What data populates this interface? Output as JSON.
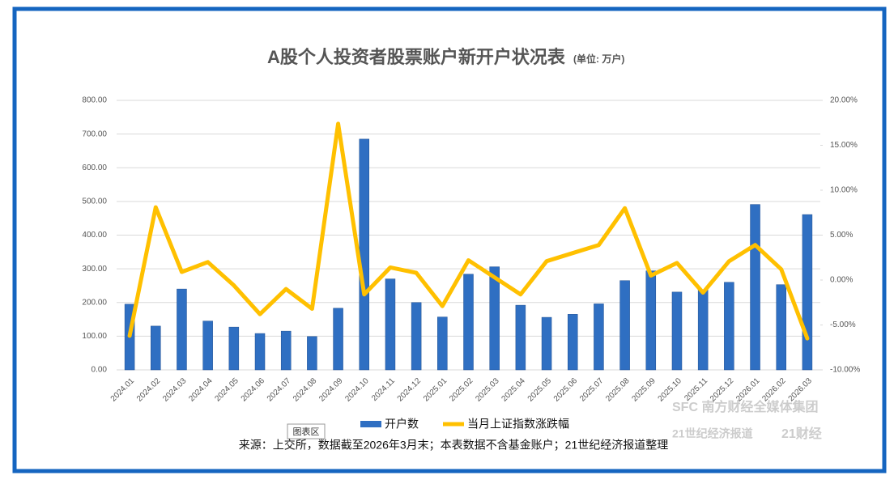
{
  "chart_data": {
    "type": "bar",
    "title": "A股个人投资者股票账户新开户状况表",
    "subtitle": "(单位: 万户)",
    "categories": [
      "2024.01",
      "2024.02",
      "2024.03",
      "2024.04",
      "2024.05",
      "2024.06",
      "2024.07",
      "2024.08",
      "2024.09",
      "2024.10",
      "2024.11",
      "2024.12",
      "2025.01",
      "2025.02",
      "2025.03",
      "2025.04",
      "2025.05",
      "2025.06",
      "2025.07",
      "2025.08",
      "2025.09",
      "2025.10",
      "2025.11",
      "2025.12",
      "2026.01",
      "2026.02",
      "2026.03"
    ],
    "series": [
      {
        "name": "开户数",
        "type": "bar",
        "color": "#2f6fc2",
        "values": [
          195,
          130,
          240,
          145,
          127,
          108,
          115,
          99,
          183,
          685,
          270,
          200,
          157,
          284,
          306,
          192,
          156,
          165,
          196,
          265,
          294,
          231,
          238,
          260,
          491,
          253,
          461
        ]
      },
      {
        "name": "当月上证指数涨跌幅",
        "type": "line",
        "axis": "y2",
        "color": "#ffc000",
        "values": [
          -6.2,
          8.1,
          0.9,
          2.0,
          -0.6,
          -3.8,
          -1.0,
          -3.2,
          17.4,
          -1.6,
          1.4,
          0.8,
          -2.9,
          2.2,
          0.3,
          -1.6,
          2.1,
          3.0,
          3.9,
          8.0,
          0.5,
          1.9,
          -1.4,
          2.1,
          3.9,
          1.2,
          -6.5
        ]
      }
    ],
    "ylim": [
      0,
      800
    ],
    "yticks": [
      {
        "value": 0,
        "label": "0.00"
      },
      {
        "value": 100,
        "label": "100.00"
      },
      {
        "value": 200,
        "label": "200.00"
      },
      {
        "value": 300,
        "label": "300.00"
      },
      {
        "value": 400,
        "label": "400.00"
      },
      {
        "value": 500,
        "label": "500.00"
      },
      {
        "value": 600,
        "label": "600.00"
      },
      {
        "value": 700,
        "label": "700.00"
      },
      {
        "value": 800,
        "label": "800.00"
      }
    ],
    "y2lim": [
      -10,
      20
    ],
    "y2ticks": [
      {
        "value": -10,
        "label": "-10.00%"
      },
      {
        "value": -5,
        "label": "-5.00%"
      },
      {
        "value": 0,
        "label": "0.00%"
      },
      {
        "value": 5,
        "label": "5.00%"
      },
      {
        "value": 10,
        "label": "10.00%"
      },
      {
        "value": 15,
        "label": "15.00%"
      },
      {
        "value": 20,
        "label": "20.00%"
      }
    ],
    "grid": true,
    "legend": "bottom",
    "tooltip": "图表区",
    "source": "来源：上交所，数据截至2026年3月末；本表数据不含基金账户；21世纪经济报道整理",
    "logos": [
      "SFC 南方财经全媒体集团",
      "21世纪经济报道",
      "21财经"
    ]
  }
}
